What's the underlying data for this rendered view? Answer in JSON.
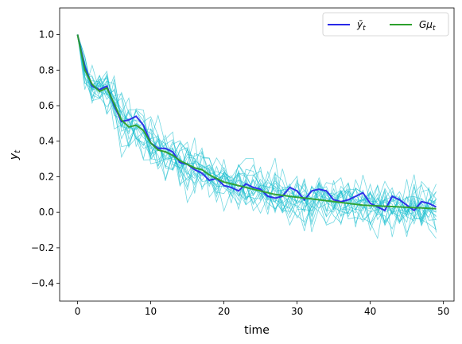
{
  "chart_data": {
    "type": "line",
    "xlabel": "time",
    "ylabel_base": "y",
    "ylabel_sub": "t",
    "xlim": [
      -2.45,
      51.45
    ],
    "ylim": [
      -0.5,
      1.15
    ],
    "xticks": [
      0,
      10,
      20,
      30,
      40,
      50
    ],
    "yticks": [
      -0.4,
      -0.2,
      0.0,
      0.2,
      0.4,
      0.6,
      0.8,
      1.0
    ],
    "ytick_labels": [
      "−0.4",
      "−0.2",
      "0.0",
      "0.2",
      "0.4",
      "0.6",
      "0.8",
      "1.0"
    ],
    "legend_position": "upper right",
    "series": [
      {
        "name": "ȳ_t",
        "label_base": "ȳ",
        "label_sub": "t",
        "color": "#2828e8",
        "values": [
          1.0,
          0.82,
          0.71,
          0.69,
          0.71,
          0.6,
          0.51,
          0.52,
          0.54,
          0.49,
          0.39,
          0.36,
          0.36,
          0.34,
          0.28,
          0.27,
          0.24,
          0.22,
          0.18,
          0.19,
          0.15,
          0.14,
          0.12,
          0.16,
          0.14,
          0.13,
          0.09,
          0.08,
          0.09,
          0.14,
          0.12,
          0.07,
          0.12,
          0.13,
          0.12,
          0.07,
          0.06,
          0.07,
          0.09,
          0.11,
          0.05,
          0.03,
          0.01,
          0.09,
          0.07,
          0.04,
          0.01,
          0.06,
          0.05,
          0.03
        ]
      },
      {
        "name": "Gμ_t",
        "label_base": "Gμ",
        "label_sub": "t",
        "color": "#2ca02c",
        "values": [
          1.0,
          0.8,
          0.72,
          0.68,
          0.7,
          0.61,
          0.52,
          0.48,
          0.49,
          0.46,
          0.39,
          0.35,
          0.34,
          0.32,
          0.29,
          0.27,
          0.25,
          0.24,
          0.21,
          0.19,
          0.17,
          0.16,
          0.15,
          0.14,
          0.13,
          0.12,
          0.11,
          0.1,
          0.095,
          0.09,
          0.085,
          0.08,
          0.075,
          0.07,
          0.065,
          0.06,
          0.055,
          0.05,
          0.045,
          0.04,
          0.038,
          0.036,
          0.034,
          0.032,
          0.03,
          0.028,
          0.026,
          0.024,
          0.022,
          0.02
        ]
      }
    ],
    "samples": {
      "color": "#17becf",
      "count": 20,
      "noise": 0.07
    }
  }
}
